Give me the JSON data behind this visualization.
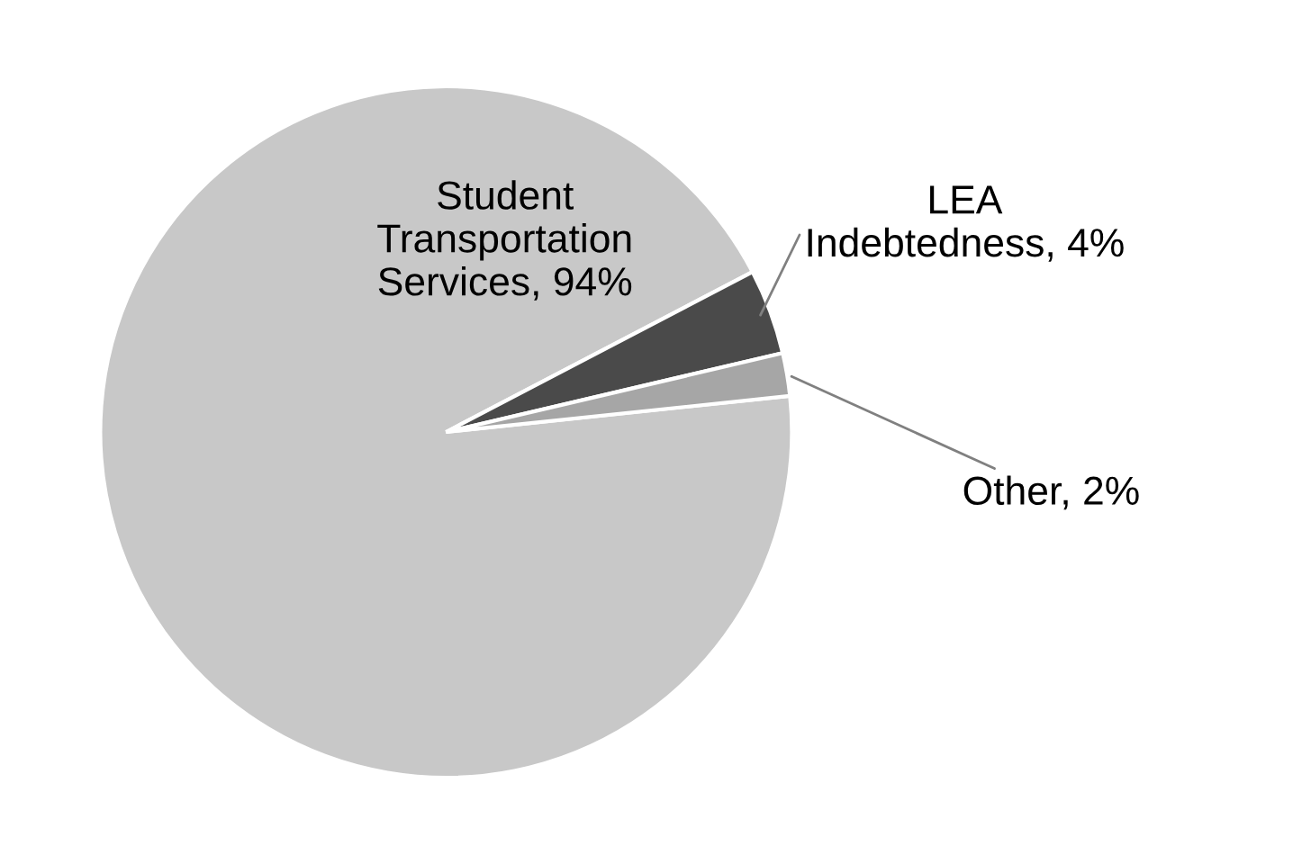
{
  "chart_data": {
    "type": "pie",
    "categories": [
      "Student Transportation Services",
      "LEA Indebtedness",
      "Other"
    ],
    "values": [
      94,
      4,
      2
    ],
    "value_labels": [
      "94%",
      "4%",
      "2%"
    ],
    "colors": [
      "#c8c8c8",
      "#4a4a4a",
      "#a6a6a6"
    ],
    "legend": false
  }
}
